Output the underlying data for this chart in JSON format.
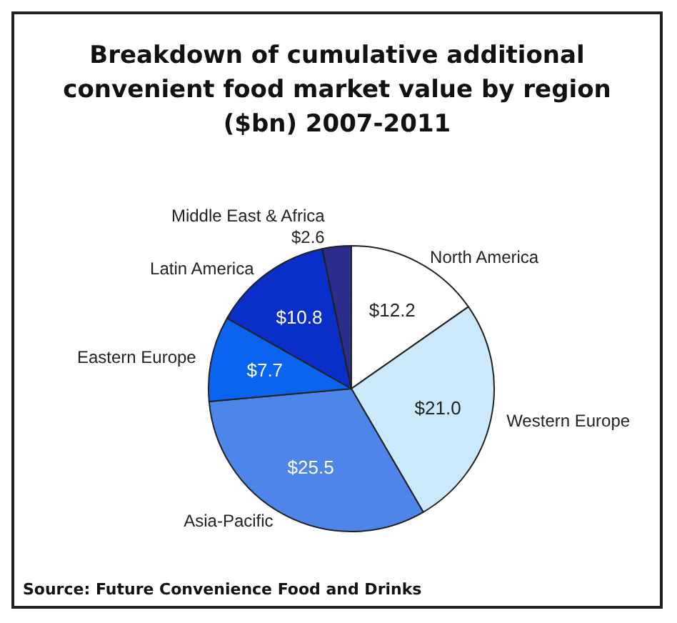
{
  "chart_data": {
    "type": "pie",
    "title": "Breakdown of cumulative additional\nconvenient food market value by region\n($bn) 2007-2011",
    "categories": [
      "North America",
      "Western Europe",
      "Asia-Pacific",
      "Eastern Europe",
      "Latin America",
      "Middle East & Africa"
    ],
    "values": [
      12.2,
      21.0,
      25.5,
      7.7,
      10.8,
      2.6
    ],
    "value_labels": [
      "$12.2",
      "$21.0",
      "$25.5",
      "$7.7",
      "$10.8",
      "$2.6"
    ],
    "colors": [
      "#ffffff",
      "#cce8fb",
      "#4d86e8",
      "#0a64f0",
      "#0a2ec8",
      "#2a2e8a"
    ],
    "annotations": [
      "Source: Future Convenience Food and Drinks"
    ]
  }
}
